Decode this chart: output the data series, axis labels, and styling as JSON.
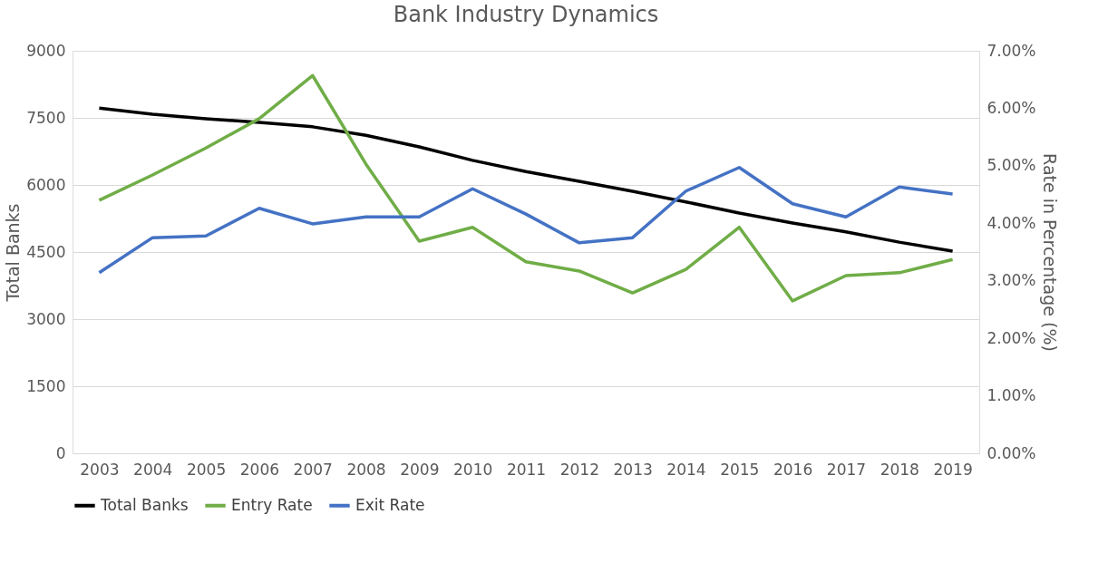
{
  "chart_data": {
    "type": "line",
    "title": "Bank Industry Dynamics",
    "ylabel": "Total Banks",
    "y2label": "Rate in Percentage (%)",
    "categories": [
      "2003",
      "2004",
      "2005",
      "2006",
      "2007",
      "2008",
      "2009",
      "2010",
      "2011",
      "2012",
      "2013",
      "2014",
      "2015",
      "2016",
      "2017",
      "2018",
      "2019"
    ],
    "series": [
      {
        "name": "Total Banks",
        "color": "#000000",
        "values": [
          7720,
          7580,
          7480,
          7400,
          7300,
          7110,
          6850,
          6550,
          6300,
          6080,
          5860,
          5620,
          5370,
          5150,
          4950,
          4720,
          4520
        ]
      },
      {
        "name": "Entry Rate",
        "color": "#70ad47",
        "axis": "y2",
        "values": [
          4.4,
          4.84,
          5.31,
          5.82,
          6.57,
          5.03,
          3.69,
          3.93,
          3.33,
          3.17,
          2.79,
          3.2,
          3.93,
          2.65,
          3.09,
          3.14,
          3.37
        ]
      },
      {
        "name": "Exit Rate",
        "color": "#4472c4",
        "axis": "y2",
        "values": [
          3.14,
          3.75,
          3.78,
          4.26,
          3.99,
          4.11,
          4.11,
          4.6,
          4.16,
          3.66,
          3.75,
          4.56,
          4.97,
          4.34,
          4.11,
          4.63,
          4.51
        ]
      }
    ],
    "ylim": [
      0,
      9000
    ],
    "yticks": [
      0,
      1500,
      3000,
      4500,
      6000,
      7500,
      9000
    ],
    "y2lim": [
      0,
      7
    ],
    "y2ticks": [
      {
        "value": 0,
        "label": "0.00%"
      },
      {
        "value": 1,
        "label": "1.00%"
      },
      {
        "value": 2,
        "label": "2.00%"
      },
      {
        "value": 3,
        "label": "3.00%"
      },
      {
        "value": 4,
        "label": "4.00%"
      },
      {
        "value": 5,
        "label": "5.00%"
      },
      {
        "value": 6,
        "label": "6.00%"
      },
      {
        "value": 7,
        "label": "7.00%"
      }
    ],
    "grid": "y",
    "legend": "bottom",
    "marker": "none",
    "line_style": "solid"
  }
}
